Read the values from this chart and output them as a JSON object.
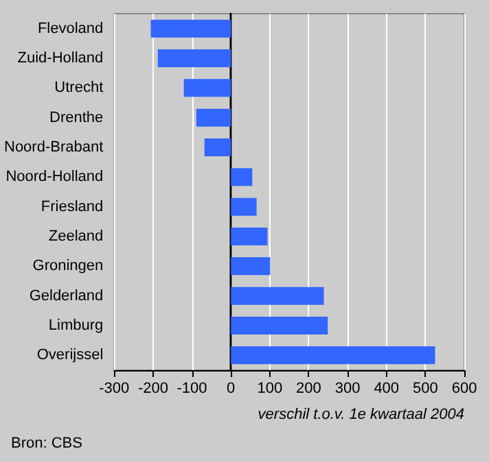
{
  "chart_data": {
    "type": "bar",
    "orientation": "horizontal",
    "categories": [
      "Flevoland",
      "Zuid-Holland",
      "Utrecht",
      "Drenthe",
      "Noord-Brabant",
      "Noord-Holland",
      "Friesland",
      "Zeeland",
      "Groningen",
      "Gelderland",
      "Limburg",
      "Overijssel"
    ],
    "values": [
      -206,
      -188,
      -121,
      -89,
      -68,
      55,
      66,
      94,
      101,
      239,
      249,
      525
    ],
    "color": "#3366ff",
    "xlim": [
      -300,
      600
    ],
    "xticks": [
      -300,
      -200,
      -100,
      0,
      100,
      200,
      300,
      400,
      500,
      600
    ],
    "grid": "x",
    "xlabel": "verschil t.o.v. 1e kwartaal 2004",
    "annotations": [
      "Bron: CBS"
    ]
  }
}
